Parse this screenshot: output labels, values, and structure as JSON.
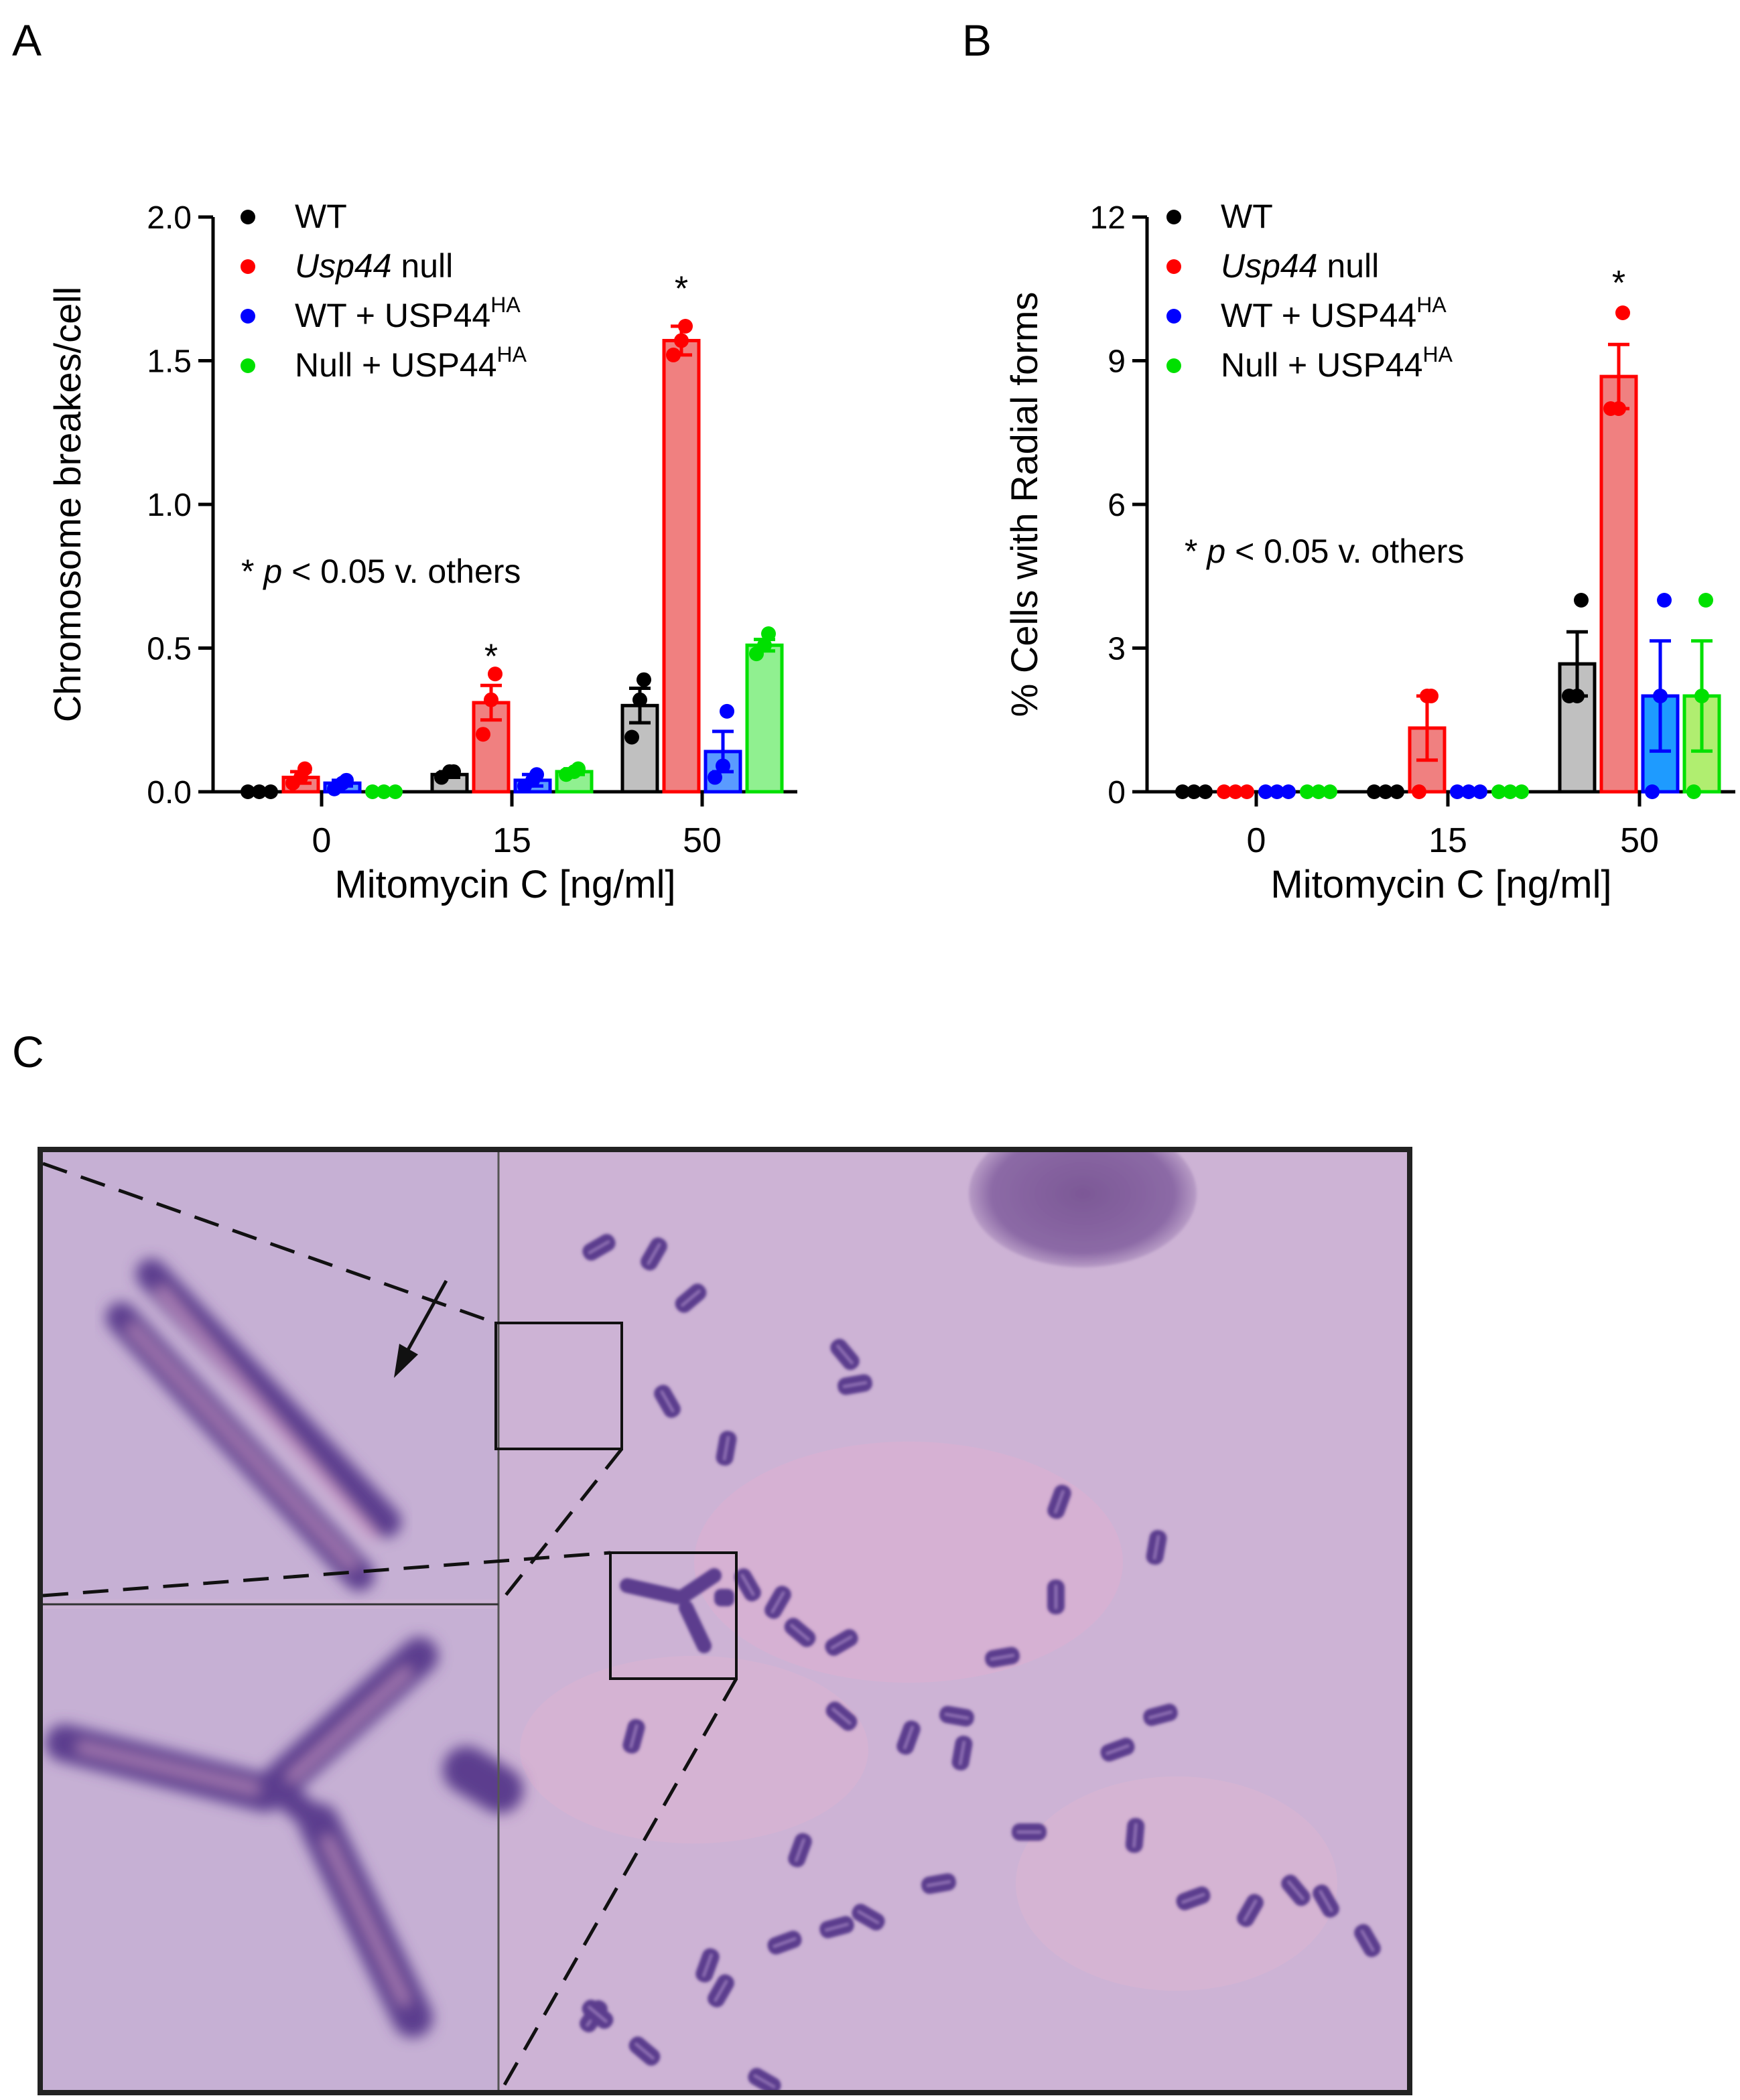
{
  "panel_labels": {
    "a": "A",
    "b": "B",
    "c": "C"
  },
  "chart_data": [
    {
      "panel": "A",
      "type": "bar",
      "ylabel": "Chromosome breakes/cell",
      "xlabel": "Mitomycin C [ng/ml]",
      "ylim": [
        0,
        2.0
      ],
      "yticks": [
        "0.0",
        "0.5",
        "1.0",
        "1.5",
        "2.0"
      ],
      "categories": [
        "0",
        "15",
        "50"
      ],
      "annotation": {
        "star": "*",
        "p": "p",
        "rest": " < 0.05 v. others"
      },
      "legend": [
        {
          "pre": "WT",
          "italic": "",
          "post": "",
          "sup": ""
        },
        {
          "pre": "",
          "italic": "Usp44",
          "post": " null",
          "sup": ""
        },
        {
          "pre": "WT + USP44",
          "italic": "",
          "post": "",
          "sup": "HA"
        },
        {
          "pre": "Null + USP44",
          "italic": "",
          "post": "",
          "sup": "HA"
        }
      ],
      "series": [
        {
          "color": "#000000",
          "fill": "#c0c0c0",
          "values": [
            0.0,
            0.06,
            0.3
          ],
          "err": [
            0.0,
            0.01,
            0.06
          ],
          "points": [
            [
              0,
              0,
              0
            ],
            [
              0.05,
              0.07,
              0.07
            ],
            [
              0.19,
              0.32,
              0.39
            ]
          ]
        },
        {
          "color": "#ff0000",
          "fill": "#f08080",
          "values": [
            0.05,
            0.31,
            1.57
          ],
          "err": [
            0.02,
            0.06,
            0.05
          ],
          "points": [
            [
              0.03,
              0.05,
              0.08
            ],
            [
              0.2,
              0.32,
              0.41
            ],
            [
              1.52,
              1.57,
              1.62
            ]
          ]
        },
        {
          "color": "#0000ff",
          "fill": "#5a9bff",
          "values": [
            0.03,
            0.04,
            0.14
          ],
          "err": [
            0.01,
            0.02,
            0.07
          ],
          "points": [
            [
              0.01,
              0.03,
              0.04
            ],
            [
              0.02,
              0.04,
              0.06
            ],
            [
              0.05,
              0.09,
              0.28
            ]
          ]
        },
        {
          "color": "#00e000",
          "fill": "#90f090",
          "values": [
            0.0,
            0.07,
            0.51
          ],
          "err": [
            0.0,
            0.01,
            0.02
          ],
          "points": [
            [
              0,
              0,
              0
            ],
            [
              0.06,
              0.07,
              0.08
            ],
            [
              0.48,
              0.51,
              0.55
            ]
          ]
        }
      ],
      "significance": [
        {
          "category": 1,
          "series": 1,
          "y": 0.5,
          "label": "*"
        },
        {
          "category": 2,
          "series": 1,
          "y": 1.78,
          "label": "*"
        }
      ]
    },
    {
      "panel": "B",
      "type": "bar",
      "ylabel": "% Cells with Radial forms",
      "xlabel": "Mitomycin C [ng/ml]",
      "ylim": [
        0,
        12
      ],
      "yticks": [
        "0",
        "3",
        "6",
        "9",
        "12"
      ],
      "categories": [
        "0",
        "15",
        "50"
      ],
      "annotation": {
        "star": "*",
        "p": "p",
        "rest": " < 0.05 v. others"
      },
      "legend": [
        {
          "pre": "WT",
          "italic": "",
          "post": "",
          "sup": ""
        },
        {
          "pre": "",
          "italic": "Usp44",
          "post": " null",
          "sup": ""
        },
        {
          "pre": "WT + USP44",
          "italic": "",
          "post": "",
          "sup": "HA"
        },
        {
          "pre": "Null + USP44",
          "italic": "",
          "post": "",
          "sup": "HA"
        }
      ],
      "series": [
        {
          "color": "#000000",
          "fill": "#c0c0c0",
          "values": [
            0,
            0,
            2.67
          ],
          "err": [
            0,
            0,
            0.67
          ],
          "points": [
            [
              0,
              0,
              0
            ],
            [
              0,
              0,
              0
            ],
            [
              2,
              2,
              4
            ]
          ]
        },
        {
          "color": "#ff0000",
          "fill": "#f08080",
          "values": [
            0,
            1.33,
            8.67
          ],
          "err": [
            0,
            0.67,
            0.67
          ],
          "points": [
            [
              0,
              0,
              0
            ],
            [
              0,
              2,
              2
            ],
            [
              8,
              8,
              10
            ]
          ]
        },
        {
          "color": "#0000ff",
          "fill": "#1e9bff",
          "values": [
            0,
            0,
            2.0
          ],
          "err": [
            0,
            0,
            1.15
          ],
          "points": [
            [
              0,
              0,
              0
            ],
            [
              0,
              0,
              0
            ],
            [
              0,
              2,
              4
            ]
          ]
        },
        {
          "color": "#00e000",
          "fill": "#b0ee70",
          "values": [
            0,
            0,
            2.0
          ],
          "err": [
            0,
            0,
            1.15
          ],
          "points": [
            [
              0,
              0,
              0
            ],
            [
              0,
              0,
              0
            ],
            [
              0,
              2,
              4
            ]
          ]
        }
      ],
      "significance": [
        {
          "category": 2,
          "series": 1,
          "y": 10.8,
          "label": "*"
        }
      ]
    }
  ],
  "micrograph": {
    "background": "#cfb4d6",
    "chromosome_color": "#5c3c8e",
    "frame_color": "#222222"
  }
}
